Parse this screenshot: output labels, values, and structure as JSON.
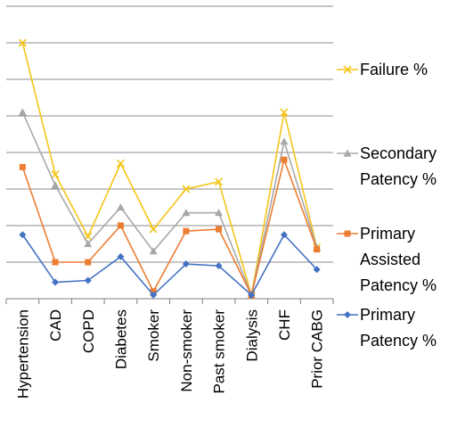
{
  "chart_data": {
    "type": "line",
    "categories": [
      "Hypertension",
      "CAD",
      "COPD",
      "Diabetes",
      "Smoker",
      "Non-smoker",
      "Past smoker",
      "Dialysis",
      "CHF",
      "Prior CABG"
    ],
    "grid": true,
    "legend_position": "right",
    "ylim": [
      0,
      8
    ],
    "series": [
      {
        "name": "Failure %",
        "label_lines": [
          "Failure %"
        ],
        "color": "#F5C518",
        "marker": "x",
        "values": [
          7.0,
          3.4,
          1.7,
          3.7,
          1.9,
          3.0,
          3.2,
          0.1,
          5.1,
          1.4
        ]
      },
      {
        "name": "Secondary Patency %",
        "label_lines": [
          "Secondary",
          "Patency %"
        ],
        "color": "#A8A8A8",
        "marker": "triangle",
        "values": [
          5.1,
          3.1,
          1.5,
          2.5,
          1.3,
          2.35,
          2.35,
          0.1,
          4.3,
          1.4
        ]
      },
      {
        "name": "Primary Assisted Patency %",
        "label_lines": [
          "Primary",
          "Assisted",
          "Patency %"
        ],
        "color": "#ED7D31",
        "marker": "square",
        "values": [
          3.6,
          1.0,
          1.0,
          2.0,
          0.2,
          1.85,
          1.9,
          0.1,
          3.8,
          1.35
        ]
      },
      {
        "name": "Primary Patency %",
        "label_lines": [
          "Primary",
          "Patency %"
        ],
        "color": "#4472C4",
        "marker": "diamond",
        "values": [
          1.75,
          0.45,
          0.5,
          1.15,
          0.1,
          0.95,
          0.9,
          0.1,
          1.75,
          0.8
        ]
      }
    ]
  }
}
